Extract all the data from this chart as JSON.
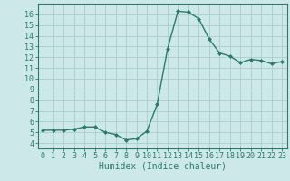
{
  "x": [
    0,
    1,
    2,
    3,
    4,
    5,
    6,
    7,
    8,
    9,
    10,
    11,
    12,
    13,
    14,
    15,
    16,
    17,
    18,
    19,
    20,
    21,
    22,
    23
  ],
  "y": [
    5.2,
    5.2,
    5.2,
    5.3,
    5.5,
    5.5,
    5.0,
    4.8,
    4.3,
    4.4,
    5.1,
    7.6,
    12.8,
    16.3,
    16.2,
    15.6,
    13.7,
    12.4,
    12.1,
    11.5,
    11.8,
    11.7,
    11.4,
    11.6
  ],
  "xlabel": "Humidex (Indice chaleur)",
  "ylim": [
    3.5,
    17.0
  ],
  "xlim": [
    -0.5,
    23.5
  ],
  "yticks": [
    4,
    5,
    6,
    7,
    8,
    9,
    10,
    11,
    12,
    13,
    14,
    15,
    16
  ],
  "xticks": [
    0,
    1,
    2,
    3,
    4,
    5,
    6,
    7,
    8,
    9,
    10,
    11,
    12,
    13,
    14,
    15,
    16,
    17,
    18,
    19,
    20,
    21,
    22,
    23
  ],
  "line_color": "#2a7a6e",
  "marker": "D",
  "marker_size": 2.0,
  "background_color": "#cce8e8",
  "grid_color": "#aacccc",
  "tick_color": "#2a7a6e",
  "label_color": "#2a7a6e",
  "xlabel_fontsize": 7,
  "tick_fontsize": 6
}
